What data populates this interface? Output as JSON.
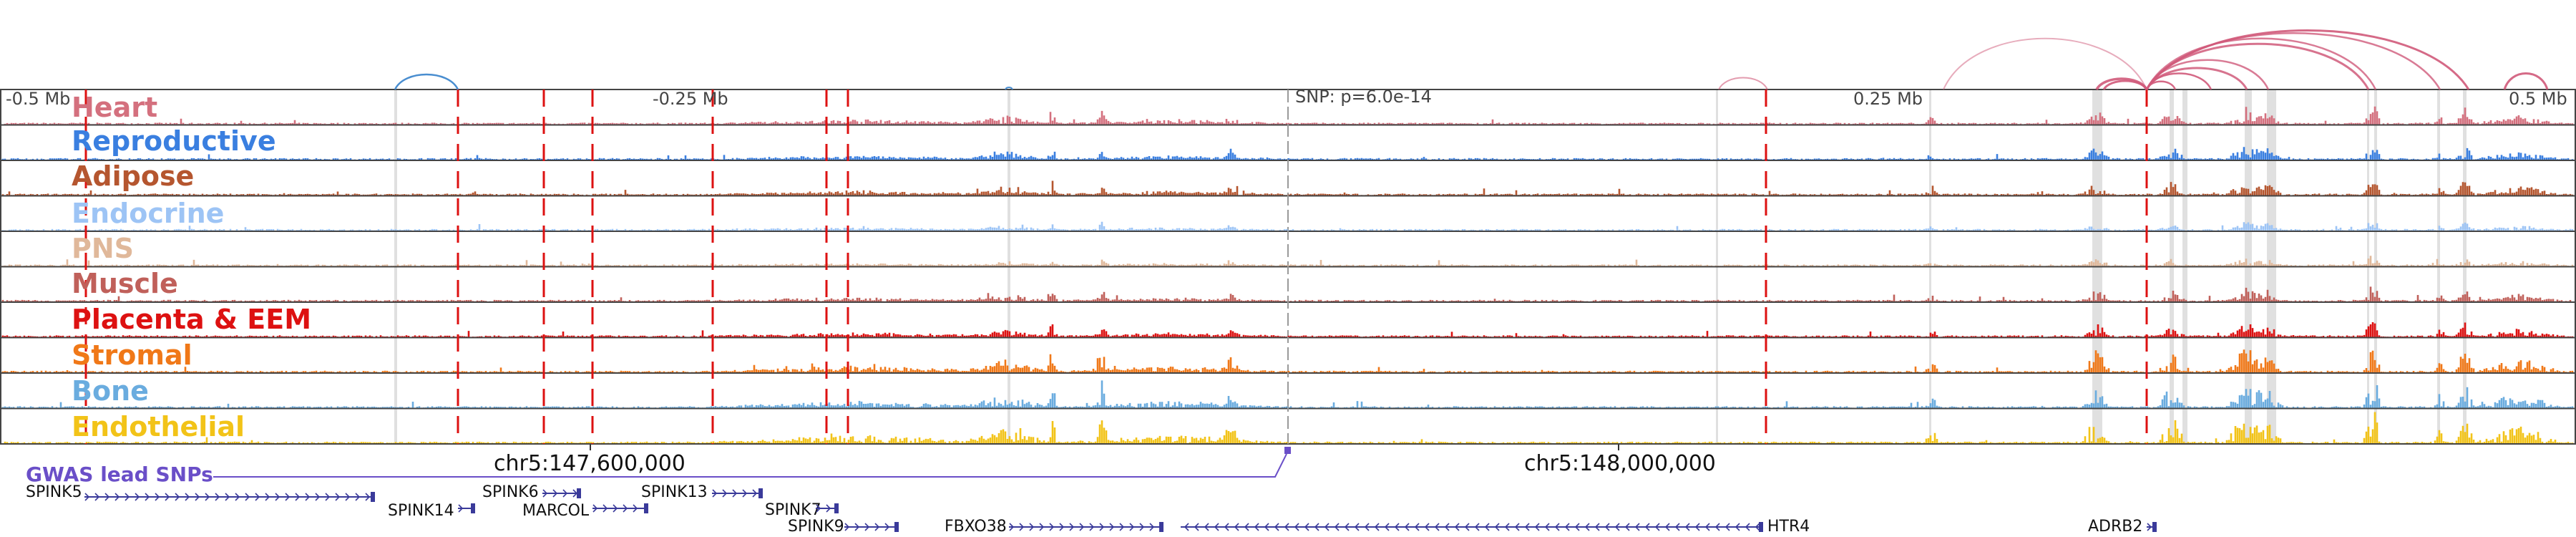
{
  "scale_labels": {
    "left": "-0.5 Mb",
    "mid_left": "-0.25 Mb",
    "snp": "SNP: p=6.0e-14",
    "mid_right": "0.25 Mb",
    "right": "0.5 Mb"
  },
  "tracks": [
    {
      "label": "Heart",
      "color": "#d4707e"
    },
    {
      "label": "Reproductive",
      "color": "#3a7fe0"
    },
    {
      "label": "Adipose",
      "color": "#b5562f"
    },
    {
      "label": "Endocrine",
      "color": "#9dc4f5"
    },
    {
      "label": "PNS",
      "color": "#e0b89a"
    },
    {
      "label": "Muscle",
      "color": "#c0605a"
    },
    {
      "label": "Placenta & EEM",
      "color": "#dd1111"
    },
    {
      "label": "Stromal",
      "color": "#f07818"
    },
    {
      "label": "Bone",
      "color": "#6aacdf"
    },
    {
      "label": "Endothelial",
      "color": "#f2c318"
    }
  ],
  "coordinates": {
    "left": "chr5:147,600,000",
    "right": "chr5:148,000,000"
  },
  "gwas_label": "GWAS lead SNPs",
  "genes": [
    {
      "name": "SPINK5",
      "direction": "right"
    },
    {
      "name": "SPINK14",
      "direction": "right"
    },
    {
      "name": "SPINK6",
      "direction": "right"
    },
    {
      "name": "MARCOL",
      "direction": "right"
    },
    {
      "name": "SPINK13",
      "direction": "right"
    },
    {
      "name": "SPINK7",
      "direction": "right"
    },
    {
      "name": "SPINK9",
      "direction": "right"
    },
    {
      "name": "FBXO38",
      "direction": "right"
    },
    {
      "name": "HTR4",
      "direction": "left"
    },
    {
      "name": "ADRB2",
      "direction": "right"
    }
  ],
  "colors": {
    "loop": "#d05a7a",
    "loop_blue": "#4a8ed0",
    "dashed_line": "#dd1111",
    "gwas": "#6a4fc8",
    "gene": "#3a3a9a",
    "highlight": "#d8d8d8"
  }
}
